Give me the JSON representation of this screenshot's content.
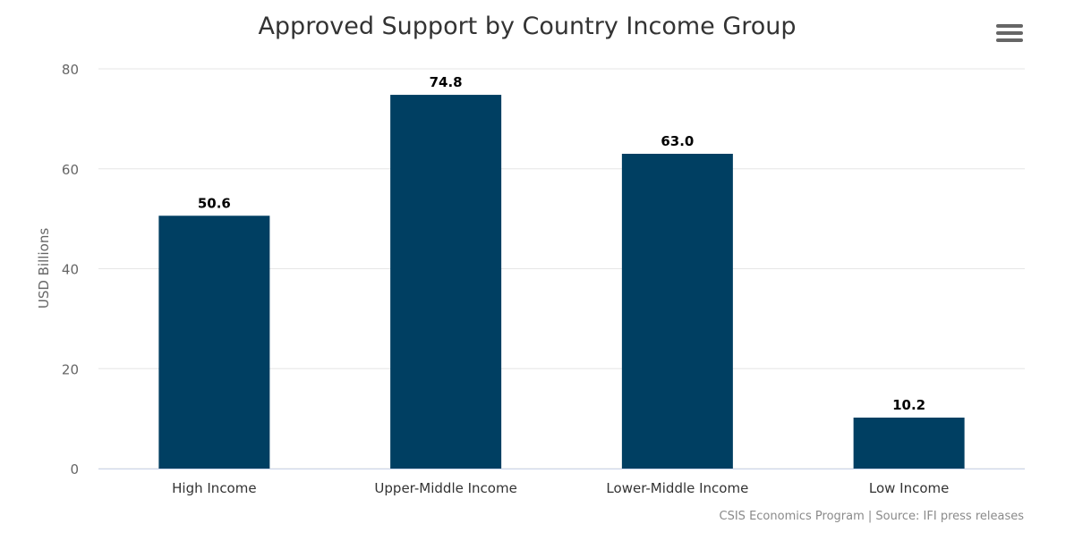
{
  "chart_data": {
    "type": "bar",
    "title": "Approved Support by Country Income Group",
    "ylabel": "USD Billions",
    "xlabel": "",
    "categories": [
      "High Income",
      "Upper-Middle Income",
      "Lower-Middle Income",
      "Low Income"
    ],
    "values": [
      50.6,
      74.8,
      63.0,
      10.2
    ],
    "value_labels": [
      "50.6",
      "74.8",
      "63.0",
      "10.2"
    ],
    "ylim": [
      0,
      80
    ],
    "yticks": [
      0,
      20,
      40,
      60,
      80
    ],
    "grid": true,
    "legend": "none",
    "bar_color": "#003f62"
  },
  "credits": "CSIS Economics Program | Source: IFI press releases",
  "menu": {
    "icon": "hamburger-menu-icon"
  }
}
